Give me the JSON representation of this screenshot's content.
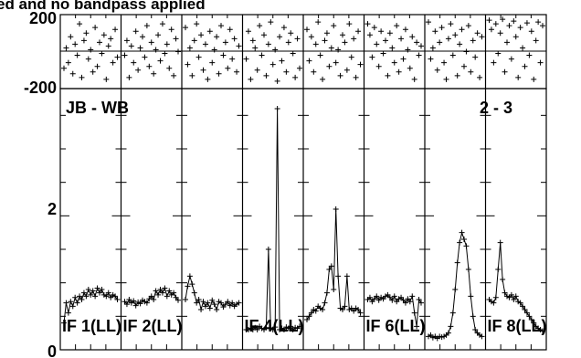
{
  "title": "ed and no bandpass applied",
  "baseline": "JB - WB",
  "stokes_pair": "2 - 3",
  "phase_axis": {
    "ticks": [
      "200",
      "-200"
    ],
    "ylim": [
      -200,
      200
    ]
  },
  "amp_axis": {
    "ticks": [
      "2",
      "0"
    ],
    "ylim": [
      0,
      3.9
    ]
  },
  "colors": {
    "ink": "#000000",
    "background": "#ffffff"
  },
  "chart_data": {
    "type": "line",
    "title": "ed and no bandpass applied",
    "ylabel": "",
    "grid": false,
    "panels": [
      {
        "label": "IF 1(LL)",
        "phase": [
          -90,
          20,
          -60,
          80,
          -120,
          40,
          -20,
          150,
          -140,
          60,
          100,
          -40,
          10,
          -110,
          130,
          -80,
          50,
          -10,
          90,
          -150,
          30,
          70,
          -60,
          120,
          -30
        ],
        "amplitude": [
          0.4,
          0.7,
          0.55,
          0.72,
          0.65,
          0.78,
          0.7,
          0.8,
          0.75,
          0.85,
          0.8,
          0.9,
          0.82,
          0.88,
          0.8,
          0.92,
          0.85,
          0.9,
          0.82,
          0.8,
          0.85,
          0.78,
          0.82,
          0.8,
          0.75
        ]
      },
      {
        "label": "IF 2(LL)",
        "phase": [
          -20,
          60,
          -140,
          30,
          -60,
          110,
          -100,
          20,
          80,
          -30,
          140,
          -80,
          50,
          -120,
          10,
          90,
          -50,
          150,
          -10,
          40,
          -90,
          120,
          -130,
          70,
          0
        ],
        "amplitude": [
          0.72,
          0.68,
          0.75,
          0.7,
          0.73,
          0.66,
          0.71,
          0.69,
          0.74,
          0.72,
          0.7,
          0.76,
          0.8,
          0.75,
          0.88,
          0.82,
          0.9,
          0.85,
          0.92,
          0.8,
          0.88,
          0.82,
          0.85,
          0.78,
          0.74
        ]
      },
      {
        "label": "",
        "phase": [
          130,
          -70,
          20,
          -130,
          60,
          150,
          -30,
          90,
          -100,
          40,
          -150,
          110,
          -60,
          10,
          80,
          -120,
          140,
          -20,
          50,
          -90,
          120,
          -40,
          70,
          -110,
          30
        ],
        "amplitude": [
          0.75,
          0.95,
          1.1,
          0.98,
          0.85,
          0.7,
          0.75,
          0.6,
          0.72,
          0.65,
          0.7,
          0.62,
          0.74,
          0.68,
          0.6,
          0.72,
          0.7,
          0.64,
          0.68,
          0.72,
          0.66,
          0.7,
          0.65,
          0.68,
          0.7
        ]
      },
      {
        "label": "IF 4(LL)",
        "phase": [
          -40,
          110,
          -150,
          60,
          20,
          -100,
          140,
          -20,
          90,
          -130,
          40,
          160,
          -70,
          10,
          -160,
          80,
          -50,
          130,
          -110,
          50,
          100,
          -10,
          -140,
          70,
          -90
        ],
        "amplitude": [
          0.3,
          0.3,
          0.32,
          0.3,
          0.33,
          0.3,
          0.35,
          0.32,
          0.3,
          0.33,
          1.5,
          0.32,
          0.3,
          0.34,
          3.6,
          0.3,
          0.32,
          0.3,
          0.34,
          0.32,
          0.35,
          0.3,
          0.33,
          0.32,
          0.35
        ]
      },
      {
        "label": "",
        "phase": [
          120,
          -50,
          80,
          -110,
          40,
          160,
          -20,
          -150,
          60,
          100,
          -80,
          20,
          140,
          -60,
          10,
          -130,
          90,
          50,
          -100,
          150,
          -30,
          70,
          -140,
          110,
          -70
        ],
        "amplitude": [
          0.45,
          0.5,
          0.55,
          0.6,
          0.58,
          0.65,
          0.62,
          0.6,
          0.7,
          0.85,
          1.2,
          1.25,
          0.9,
          2.1,
          1.1,
          0.62,
          0.6,
          0.65,
          1.1,
          0.6,
          0.62,
          0.58,
          0.62,
          0.6,
          0.55
        ]
      },
      {
        "label": "IF 6(LL)",
        "phase": [
          150,
          90,
          -30,
          130,
          40,
          -80,
          110,
          -10,
          60,
          -130,
          100,
          20,
          -60,
          140,
          -110,
          70,
          -40,
          120,
          10,
          -90,
          80,
          -150,
          50,
          -20,
          30
        ],
        "amplitude": [
          0.75,
          0.78,
          0.72,
          0.76,
          0.8,
          0.74,
          0.78,
          0.76,
          0.8,
          0.82,
          0.78,
          0.74,
          0.8,
          0.72,
          0.76,
          0.78,
          0.74,
          0.7,
          0.76,
          0.72,
          0.8,
          0.55,
          0.35,
          0.75,
          0.7
        ]
      },
      {
        "label": "",
        "phase": [
          160,
          -40,
          20,
          110,
          -100,
          50,
          130,
          -60,
          -150,
          70,
          150,
          -20,
          90,
          -130,
          40,
          120,
          -80,
          0,
          140,
          -110,
          60,
          -30,
          100,
          -140,
          80
        ],
        "amplitude": [
          0.2,
          0.22,
          0.18,
          0.2,
          0.17,
          0.2,
          0.19,
          0.2,
          0.22,
          0.25,
          0.35,
          0.55,
          0.9,
          1.3,
          1.6,
          1.75,
          1.65,
          1.55,
          1.2,
          0.8,
          0.5,
          0.3,
          0.25,
          0.22,
          0.2
        ]
      },
      {
        "label": "IF 8(LL)",
        "phase": [
          170,
          120,
          -60,
          150,
          -10,
          100,
          175,
          -110,
          50,
          140,
          -40,
          165,
          80,
          -140,
          130,
          20,
          -80,
          155,
          -20,
          110,
          -150,
          60,
          160,
          -60,
          140
        ],
        "amplitude": [
          0.75,
          0.72,
          0.7,
          0.78,
          1.2,
          1.6,
          1.05,
          0.85,
          0.8,
          0.78,
          0.82,
          0.75,
          0.8,
          0.72,
          0.7,
          0.65,
          0.6,
          0.55,
          0.5,
          0.45,
          0.4,
          0.35,
          0.32,
          0.3,
          0.28
        ]
      }
    ]
  }
}
